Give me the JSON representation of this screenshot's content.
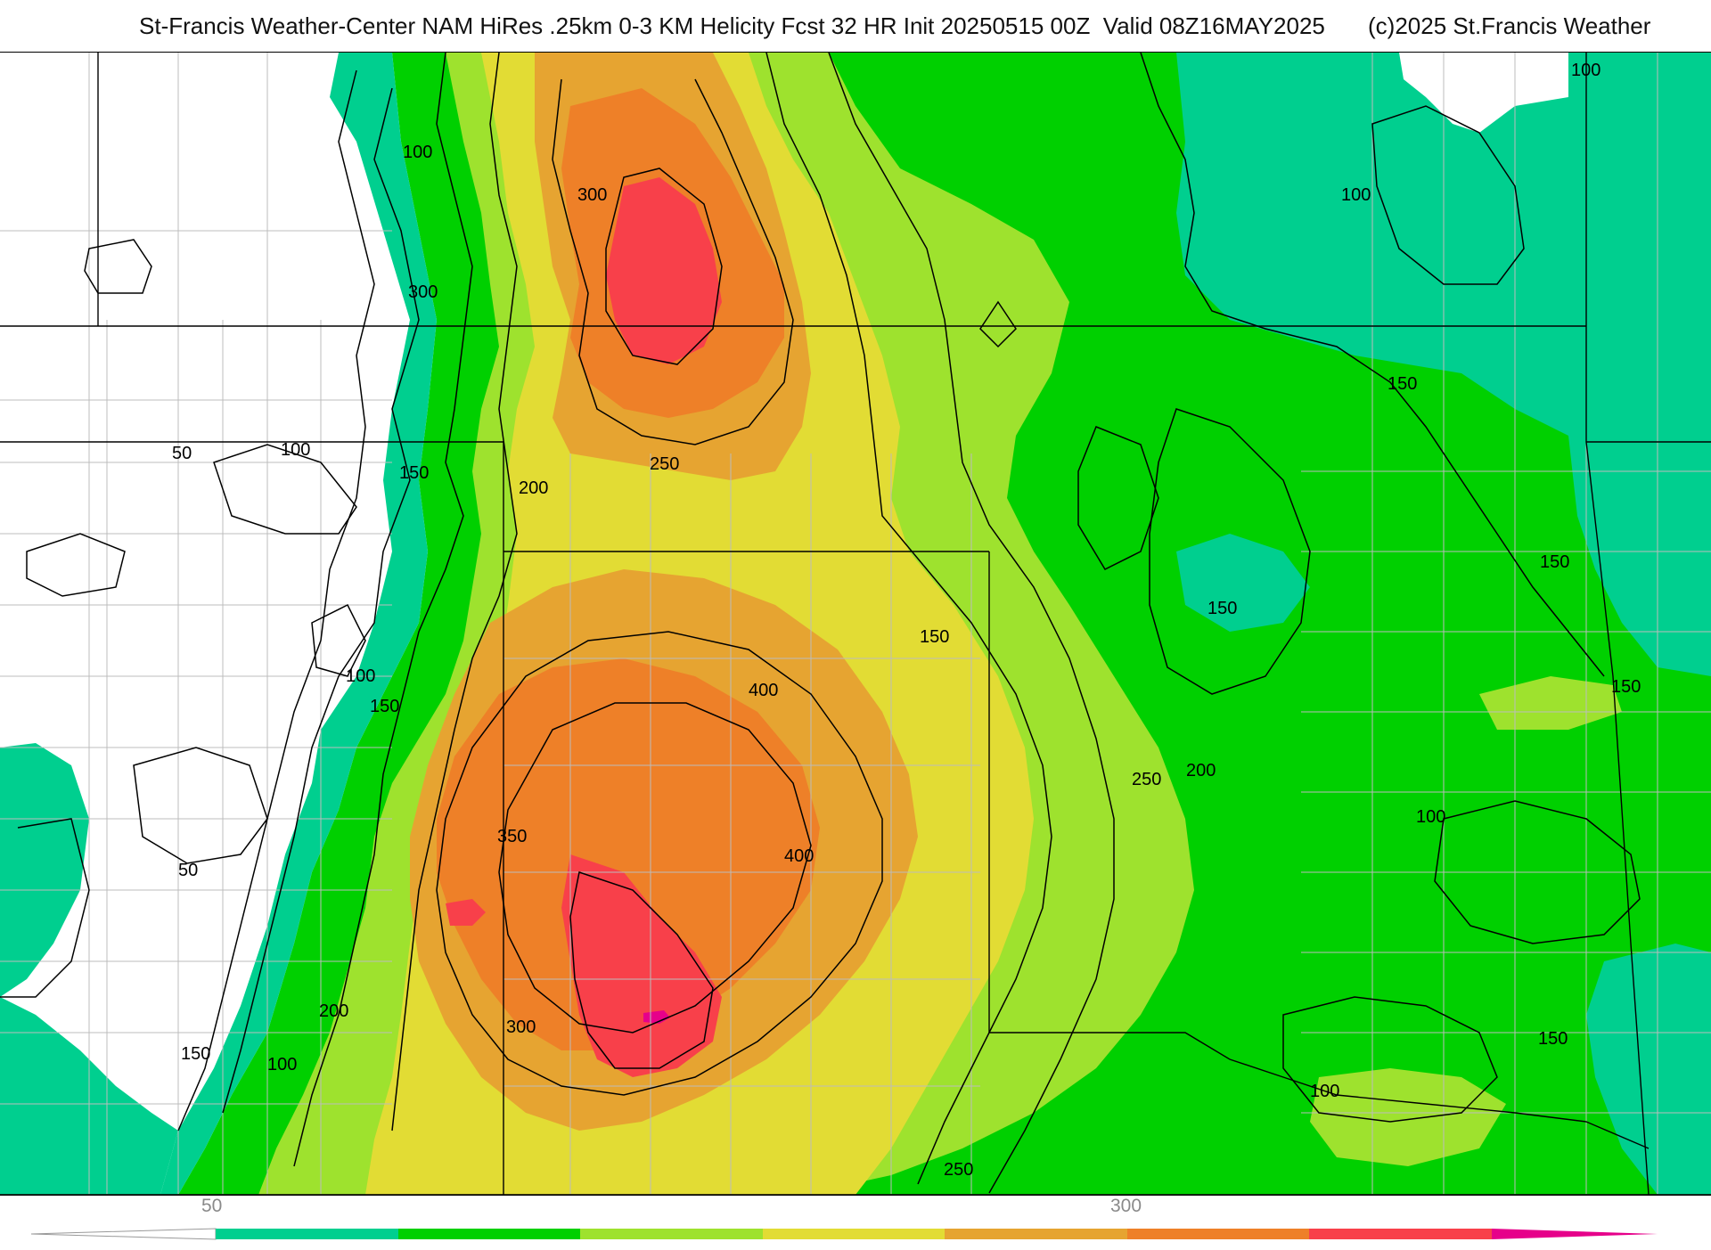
{
  "header": {
    "title": "St-Francis Weather-Center NAM HiRes .25km 0-3 KM Helicity Fcst 32 HR Init 20250515 00Z  Valid 08Z16MAY2025",
    "copyright": "(c)2025 St.Francis Weather"
  },
  "colors": {
    "band_50": "#00cf8f",
    "band_100": "#00d000",
    "band_150": "#9ee22e",
    "band_200": "#e2dc34",
    "band_250": "#e6a431",
    "band_300": "#ee8028",
    "band_350": "#f8404a",
    "band_400": "#e6008a",
    "state_lines": "#000000",
    "county_lines": "#bcbcbc",
    "contour_lines": "#000000"
  },
  "colorbar": {
    "tick_labels": [
      "50",
      "300"
    ]
  },
  "map": {
    "contour_labels": [
      "100",
      "150",
      "300",
      "100",
      "150",
      "100",
      "50",
      "100",
      "150",
      "200",
      "250",
      "150",
      "100",
      "150",
      "300",
      "400",
      "150",
      "100",
      "150",
      "350",
      "400",
      "250",
      "200",
      "100",
      "50",
      "200",
      "300",
      "150",
      "100",
      "150",
      "100",
      "250"
    ]
  }
}
